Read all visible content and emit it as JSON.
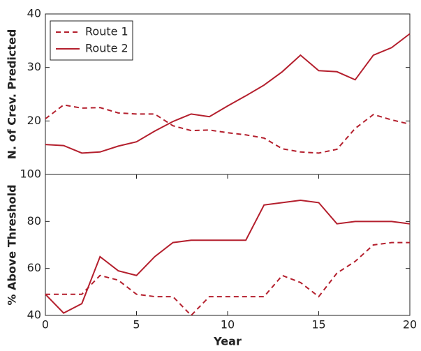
{
  "chart_data": [
    {
      "type": "line",
      "ylabel": "N. of Crev. Predicted",
      "x": [
        0,
        1,
        2,
        3,
        4,
        5,
        6,
        7,
        8,
        9,
        10,
        11,
        12,
        13,
        14,
        15,
        16,
        17,
        18,
        19,
        20
      ],
      "xlim": [
        0,
        20
      ],
      "ylim": [
        10,
        40
      ],
      "yticks": [
        20,
        30,
        40
      ],
      "legend": "upper left",
      "series": [
        {
          "name": "Route 1",
          "color": "#b41f2d",
          "linestyle": "dashed",
          "values": [
            20.4,
            23.0,
            22.4,
            22.5,
            21.5,
            21.3,
            21.3,
            19.1,
            18.2,
            18.3,
            17.8,
            17.4,
            16.8,
            14.8,
            14.2,
            14.0,
            14.7,
            18.6,
            21.2,
            20.2,
            19.4
          ]
        },
        {
          "name": "Route 2",
          "color": "#b41f2d",
          "linestyle": "solid",
          "values": [
            15.6,
            15.4,
            14.0,
            14.2,
            15.3,
            16.1,
            18.1,
            19.9,
            21.3,
            20.8,
            22.8,
            24.7,
            26.7,
            29.2,
            32.3,
            29.4,
            29.2,
            27.7,
            32.3,
            33.7,
            36.3
          ]
        }
      ]
    },
    {
      "type": "line",
      "ylabel": "% Above Threshold",
      "xlabel": "Year",
      "x": [
        0,
        1,
        2,
        3,
        4,
        5,
        6,
        7,
        8,
        9,
        10,
        11,
        12,
        13,
        14,
        15,
        16,
        17,
        18,
        19,
        20
      ],
      "xlim": [
        0,
        20
      ],
      "xticks": [
        0,
        5,
        10,
        15,
        20
      ],
      "ylim": [
        40,
        100
      ],
      "yticks": [
        40,
        60,
        80,
        100
      ],
      "series": [
        {
          "color": "#b41f2d",
          "linestyle": "dashed",
          "values": [
            49,
            49,
            49,
            57,
            55,
            49,
            48,
            48,
            40,
            48,
            48,
            48,
            48,
            57,
            54,
            48,
            58,
            63,
            70,
            71,
            71
          ]
        },
        {
          "color": "#b41f2d",
          "linestyle": "solid",
          "values": [
            49,
            41,
            45,
            65,
            59,
            57,
            65,
            71,
            72,
            72,
            72,
            72,
            87,
            88,
            89,
            88,
            79,
            80,
            80,
            80,
            79
          ]
        }
      ]
    }
  ]
}
